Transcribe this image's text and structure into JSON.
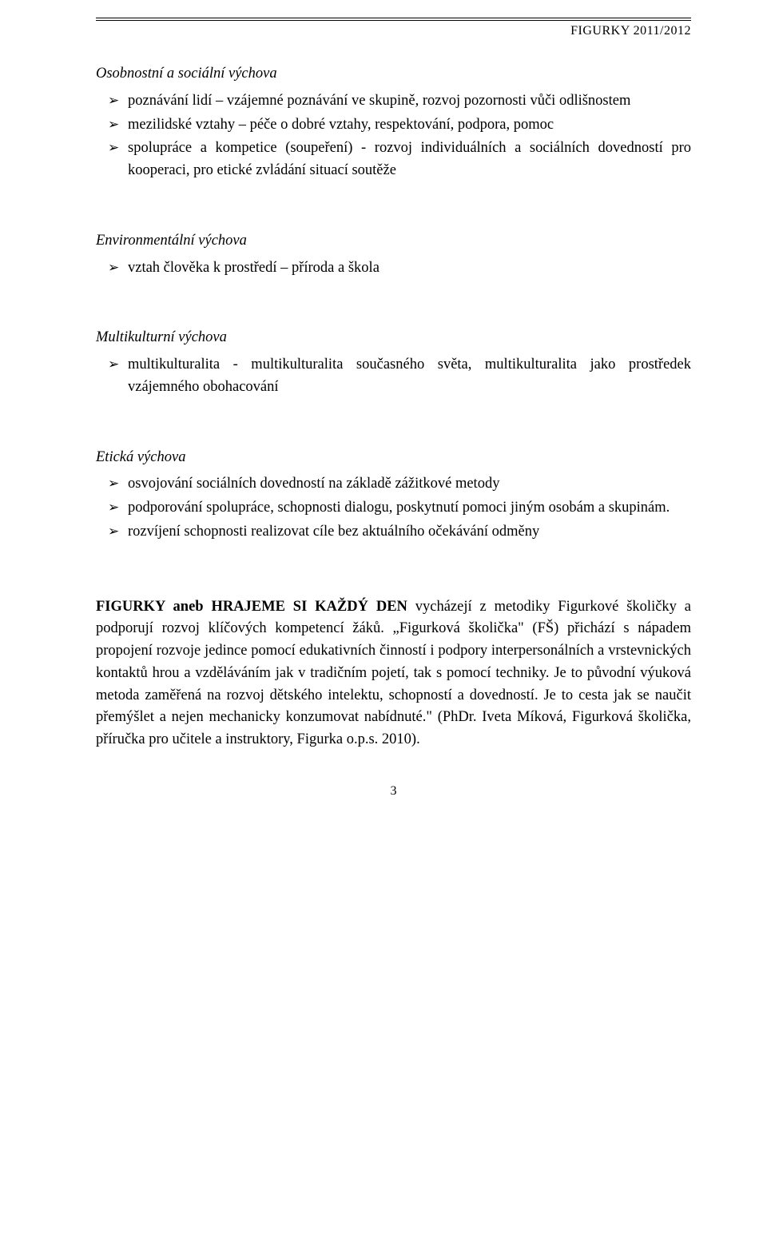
{
  "header": {
    "running_head": "FIGURKY  2011/2012"
  },
  "sections": [
    {
      "heading": "Osobnostní a sociální výchova",
      "items": [
        "poznávání lidí – vzájemné poznávání ve skupině, rozvoj pozornosti vůči odlišnostem",
        "mezilidské vztahy – péče o dobré vztahy, respektování, podpora, pomoc",
        "spolupráce  a kompetice (soupeření) - rozvoj individuálních a sociálních dovedností pro kooperaci, pro etické zvládání situací soutěže"
      ]
    },
    {
      "heading": "Environmentální výchova",
      "items": [
        "vztah člověka k prostředí – příroda a škola"
      ]
    },
    {
      "heading": "Multikulturní výchova",
      "items": [
        "multikulturalita - multikulturalita současného světa, multikulturalita jako prostředek vzájemného obohacování"
      ]
    },
    {
      "heading": "Etická výchova",
      "items": [
        "osvojování sociálních dovedností na základě zážitkové metody",
        "podporování  spolupráce, schopnosti dialogu, poskytnutí pomoci jiným osobám a skupinám.",
        "rozvíjení schopnosti realizovat cíle bez aktuálního očekávání odměny"
      ]
    }
  ],
  "paragraph": {
    "bold_lead": "FIGURKY aneb HRAJEME SI KAŽDÝ DEN",
    "rest": " vycházejí z metodiky Figurkové školičky a podporují rozvoj klíčových kompetencí žáků. „Figurková školička\" (FŠ) přichází s nápadem propojení rozvoje jedince pomocí edukativních činností i podpory interpersonálních a vrstevnických kontaktů hrou a vzděláváním jak v tradičním pojetí, tak s pomocí techniky. Je to původní výuková metoda zaměřená na rozvoj dětského intelektu, schopností a dovedností. Je to cesta jak se naučit přemýšlet a nejen mechanicky konzumovat nabídnuté.\" (PhDr. Iveta Míková, Figurková školička, příručka pro učitele a instruktory, Figurka o.p.s. 2010)."
  },
  "page_number": "3"
}
